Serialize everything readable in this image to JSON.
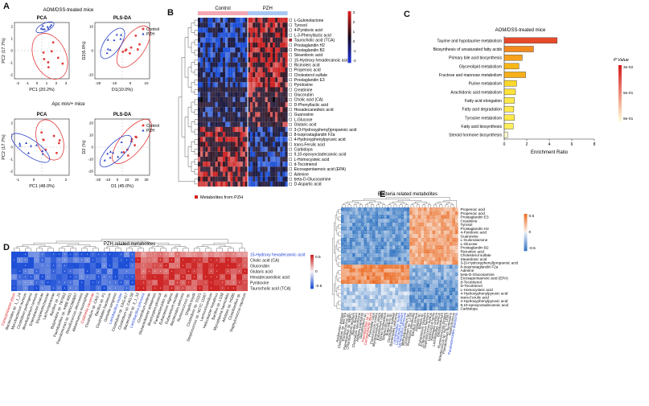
{
  "panel_labels": {
    "a": "A",
    "b": "B",
    "c": "C",
    "d": "D",
    "e": "E"
  },
  "panel_a": {
    "top_title": "AOM/DSS-treated mice",
    "bottom_title": "Apc min/+ mice",
    "legend": {
      "control": "Control",
      "pzh": "PZH"
    },
    "plots": [
      {
        "title": "PCA",
        "xlabel": "PC1 (20.2%)",
        "ylabel": "PC2 (17.7%)",
        "xticks": [
          "-2",
          "-1",
          "0",
          "1",
          "2",
          "3"
        ],
        "yticks": [
          "2",
          "1",
          "0",
          "-1",
          "-2"
        ]
      },
      {
        "title": "PLS-DA",
        "xlabel": "D1(10.0%)",
        "ylabel": "D2(6.0%)",
        "xticks": [
          "-20",
          "-10",
          "0",
          "10"
        ],
        "yticks": [
          "10",
          "0",
          "-10"
        ]
      },
      {
        "title": "PCA",
        "xlabel": "PC1 (48.0%)",
        "ylabel": "PC2 (17.7%)",
        "xticks": [
          "-1",
          "0",
          "1",
          "2"
        ],
        "yticks": [
          "2",
          "1",
          "0",
          "-1",
          "-2"
        ]
      },
      {
        "title": "PLS-DA",
        "xlabel": "D1 (45.0%)",
        "ylabel": "D2 (%)",
        "xticks": [
          "-20",
          "-10",
          "0",
          "10",
          "20",
          "30"
        ],
        "yticks": [
          "20",
          "10",
          "0",
          "-10",
          "-20"
        ]
      }
    ]
  },
  "panel_b": {
    "groups": [
      "Control",
      "PZH"
    ],
    "scale_ticks": [
      "3",
      "2",
      "1",
      "0",
      "-1",
      "-2"
    ],
    "legend": "Metabolites from PZH",
    "rows": [
      "L-Gulonolactone",
      "Tyrosol",
      "4-Pyridoxic acid",
      "L-3-Phenyllactic acid",
      "Taurocholic acid (TCA)",
      "Prostaglandin H2",
      "Prostaglandin B2",
      "Stearidonic acid",
      "15-Hydroxy hexadecanoic acid",
      "Ricinoleic acid",
      "Propenoic acid",
      "Cholesterol sulfate",
      "Prostaglandin E3",
      "Pyridoxine",
      "Creatinine",
      "Glucorubin",
      "Cholic acid (CA)",
      "D-Phenyllactic acid",
      "Hexadecanedioic acid",
      "Guanosine",
      "L-Glucose",
      "Glutaric acid",
      "3-(3-Hydroxyphenyl)propanoic acid",
      "8-isoprostaglandin F2a",
      "4-Hydroxyphenylpyruvic acid",
      "trans-Ferulic acid",
      "Carbidopa",
      "9,10-epoxyoctadecanoic acid",
      "L-Homocysteic acid",
      "d-Tocotrienol",
      "Eicosapentaenoic acid (EPA)",
      "Adenine",
      "beta-D-Glucosamine",
      "D-Aspartic acid"
    ],
    "pzh_flags": [
      false,
      false,
      false,
      false,
      true,
      false,
      false,
      false,
      false,
      false,
      false,
      false,
      false,
      false,
      false,
      false,
      false,
      false,
      false,
      false,
      false,
      false,
      false,
      false,
      false,
      false,
      false,
      false,
      false,
      false,
      false,
      false,
      false,
      false
    ]
  },
  "panel_c": {
    "title": "AOM/DSS-treated mice",
    "xlabel": "Enrichment Ratio",
    "legend_title": "P Value",
    "legend_ticks": [
      "3e-02",
      "5e-01",
      "9e-01"
    ],
    "chart_data": {
      "type": "bar",
      "orientation": "horizontal",
      "categories": [
        "Taurine and hypotaurine metabolism",
        "Biosynthesis of unsaturated fatty acids",
        "Primary bile acid biosynthesis",
        "Glycerolipid metabolism",
        "Fructose and mannose metabolism",
        "Purine metabolism",
        "Arachidonic acid metabolism",
        "Fatty acid elongation",
        "Fatty acid degradation",
        "Tyrosine metabolism",
        "Fatty acid biosynthesis",
        "Steroid hormone biosynthesis"
      ],
      "values": [
        4.7,
        2.6,
        1.6,
        1.3,
        1.9,
        1.1,
        1.0,
        0.9,
        0.85,
        0.9,
        0.8,
        0.3
      ],
      "colors": [
        "#e8492a",
        "#f38a1e",
        "#f6a21d",
        "#f8b619",
        "#f7b019",
        "#fbd82a",
        "#fce23a",
        "#fde94a",
        "#fde94a",
        "#fde94a",
        "#fdef5c",
        "#fffac8"
      ],
      "xticks": [
        "0",
        "2",
        "4",
        "6",
        "8"
      ],
      "xlim": [
        0,
        8
      ]
    }
  },
  "panel_d": {
    "title": "PZH related metabolites",
    "scale_ticks": [
      "0.5",
      "0",
      "-0.5"
    ],
    "rows": [
      "15-Hydroxy hexadecanoic acid",
      "Cholic acid (CA)",
      "Glucorubin",
      "Glutaric acid",
      "Hexadecanedioic acid",
      "Pyridoxine",
      "Taurocholic acid (TCA)"
    ],
    "row_colors": [
      "#1a3fd6",
      "#111111",
      "#111111",
      "#111111",
      "#111111",
      "#111111",
      "#111111"
    ],
    "cols": [
      {
        "n": "Campylobacter jejuni",
        "c": "#d92020"
      },
      {
        "n": "Bacteroides sp. 1_1_14",
        "c": "#111111"
      },
      {
        "n": "Mycobacterium aureum",
        "c": "#111111"
      },
      {
        "n": "Clostridium perfringens",
        "c": "#111111"
      },
      {
        "n": "Brevibacterium cerinum",
        "c": "#111111"
      },
      {
        "n": "Enterobacter cloacae",
        "c": "#111111"
      },
      {
        "n": "Erysipelotrichaceae",
        "c": "#111111"
      },
      {
        "n": "Lachnospiraceae",
        "c": "#111111"
      },
      {
        "n": "Bacillus sp. JS",
        "c": "#111111"
      },
      {
        "n": "Butyrivibrio sp. TB7902",
        "c": "#111111"
      },
      {
        "n": "Paenibacillus sp. IHBB 9951",
        "c": "#111111"
      },
      {
        "n": "Pseudomonas sp. HMSC066B07",
        "c": "#111111"
      },
      {
        "n": "Desulfococcus oleovorans",
        "c": "#111111"
      },
      {
        "n": "Akkermansia muciniphila",
        "c": "#111111"
      },
      {
        "n": "Coldinella cavernae",
        "c": "#d92020"
      },
      {
        "n": "Clostridium sp. CAG:7",
        "c": "#111111"
      },
      {
        "n": "Bacillus sp. P1",
        "c": "#111111"
      },
      {
        "n": "Clostridiales bacterium",
        "c": "#111111"
      },
      {
        "n": "Gemella sanguinis",
        "c": "#111111"
      },
      {
        "n": "Lactobacillus reuteri",
        "c": "#1a3fd6"
      },
      {
        "n": "Clostridium sp. CAG:417",
        "c": "#111111"
      },
      {
        "n": "Clostridium sp. CAG:58",
        "c": "#111111"
      },
      {
        "n": "Bacteroides sp. 3_1_33",
        "c": "#111111"
      },
      {
        "n": "Lactobacillus johnsonii",
        "c": "#1a3fd6"
      },
      {
        "n": "Clostridium bolteae",
        "c": "#111111"
      },
      {
        "n": "Glutamicibacter arilaitensis",
        "c": "#111111"
      },
      {
        "n": "Brachyspira pilosicoli",
        "c": "#111111"
      },
      {
        "n": "Parabacteroides sp.",
        "c": "#111111"
      },
      {
        "n": "Eubacterium eligens",
        "c": "#111111"
      },
      {
        "n": "Eubacterium rectale",
        "c": "#111111"
      },
      {
        "n": "Bacteroides stercoris",
        "c": "#111111"
      },
      {
        "n": "Ruminococcus sp.",
        "c": "#111111"
      },
      {
        "n": "Shigella boydii",
        "c": "#111111"
      },
      {
        "n": "Clostridium sp. SS2/1",
        "c": "#111111"
      },
      {
        "n": "Streptococcus sp. NCTC 11567",
        "c": "#111111"
      },
      {
        "n": "Lachnoclostridium",
        "c": "#111111"
      },
      {
        "n": "Helicobacter hepaticus",
        "c": "#111111"
      },
      {
        "n": "Bacillus sp. LS38",
        "c": "#111111"
      },
      {
        "n": "Mycoplasma haemofelis",
        "c": "#111111"
      },
      {
        "n": "Alistipes sp. HGB5",
        "c": "#111111"
      },
      {
        "n": "Cloacibacillus sp.",
        "c": "#111111"
      },
      {
        "n": "Staphylococcus equorum",
        "c": "#111111"
      }
    ]
  },
  "panel_e": {
    "title": "Bacteria related metabolites",
    "scale_ticks": [
      "0.5",
      "0",
      "-0.5"
    ],
    "rows": [
      "Propenoic acid",
      "Propenoic acid",
      "Prostaglandin E3",
      "Creatinine",
      "Tyrosol",
      "Prostaglandin H2",
      "4-Pyridoxic acid",
      "Guanosine",
      "L-Gulonolactone",
      "L-Glucose",
      "Prostaglandin B2",
      "Ricinoleic acid",
      "Cholesterol sulfate",
      "Stearidonic acid",
      "3-(3-Hydroxyphenyl)propanoic acid",
      "8-isoprostaglandin F2a",
      "Adenine",
      "beta-D-Glucosamine",
      "Eicosapentaenoic acid (EPA)",
      "d-Tocotrienol",
      "D-Tocotrienol",
      "L-Homocysteic acid",
      "4-Hydroxyphenylpyruvic acid",
      "trans-Ferulic acid",
      "4-Hydroxyphenylpyruvic acid",
      "9,10-epoxyoctadecanoic acid",
      "Carbidopa"
    ],
    "cols": [
      {
        "n": "Acidovorax avenae",
        "c": "#111111"
      },
      {
        "n": "Clostridium sp. MSTE9",
        "c": "#111111"
      },
      {
        "n": "Ruminococcus sp.",
        "c": "#111111"
      },
      {
        "n": "Paenibacillus sp. NBRC",
        "c": "#111111"
      },
      {
        "n": "Chlorobaculum tepidum",
        "c": "#111111"
      },
      {
        "n": "Blautia obeum",
        "c": "#111111"
      },
      {
        "n": "Clostridium spiroforme",
        "c": "#111111"
      },
      {
        "n": "Alistipes putredinis",
        "c": "#111111"
      },
      {
        "n": "Desulfovibrio sp.",
        "c": "#111111"
      },
      {
        "n": "Paenibacillus sp. 1",
        "c": "#d92020"
      },
      {
        "n": "Campylobacter jejuni",
        "c": "#d92020"
      },
      {
        "n": "Prevotella copri",
        "c": "#111111"
      },
      {
        "n": "Coprococcus comes",
        "c": "#111111"
      },
      {
        "n": "Mycobacterium avium",
        "c": "#111111"
      },
      {
        "n": "Eubacterium hallii",
        "c": "#111111"
      },
      {
        "n": "Dorea longicatena",
        "c": "#111111"
      },
      {
        "n": "Streptococcus sp.",
        "c": "#111111"
      },
      {
        "n": "Butyrivibrio sp.",
        "c": "#111111"
      },
      {
        "n": "Clostridium bolteae",
        "c": "#111111"
      },
      {
        "n": "Bacteroides uniformis",
        "c": "#111111"
      },
      {
        "n": "Lactobacillus reuteri",
        "c": "#1a3fd6"
      },
      {
        "n": "Lactobacillus gasseri",
        "c": "#1a3fd6"
      },
      {
        "n": "Lactobacillus johnsonii",
        "c": "#1a3fd6"
      },
      {
        "n": "Methylobacterium sp.",
        "c": "#111111"
      },
      {
        "n": "Clostridium sp. L2-50",
        "c": "#111111"
      },
      {
        "n": "Roseburia intestinalis",
        "c": "#111111"
      },
      {
        "n": "Bacillus cereus",
        "c": "#111111"
      },
      {
        "n": "Alistipes sp.",
        "c": "#111111"
      },
      {
        "n": "Blautia sp.",
        "c": "#111111"
      },
      {
        "n": "Eubacterium siraeum",
        "c": "#111111"
      },
      {
        "n": "Enterococcus faecium",
        "c": "#111111"
      },
      {
        "n": "Staphylococcus aureus",
        "c": "#111111"
      },
      {
        "n": "Lactococcus lactis",
        "c": "#111111"
      },
      {
        "n": "Klebsiella oxytoca",
        "c": "#111111"
      },
      {
        "n": "Lactobacillus murinus",
        "c": "#111111"
      },
      {
        "n": "Bifidobacterium",
        "c": "#111111"
      },
      {
        "n": "Ruminococcus torques",
        "c": "#111111"
      },
      {
        "n": "Streptococcus sp. NCTC 11567",
        "c": "#111111"
      },
      {
        "n": "Pseudomonas fluorescens",
        "c": "#111111"
      },
      {
        "n": "Anaerotruncus",
        "c": "#111111"
      },
      {
        "n": "Parabacteroides distasonis",
        "c": "#1a3fd6"
      }
    ]
  }
}
